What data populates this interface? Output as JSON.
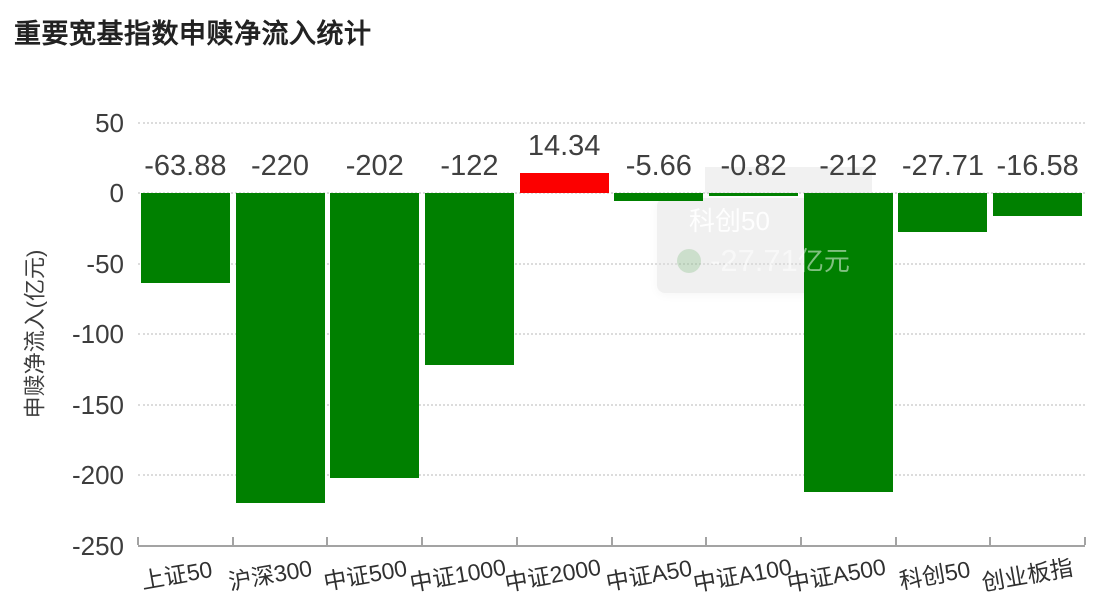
{
  "title": "重要宽基指数申赎净流入统计",
  "chart_data": {
    "type": "bar",
    "title": "重要宽基指数申赎净流入统计",
    "xlabel": "",
    "ylabel": "申赎净流入(亿元)",
    "ylim": [
      -250,
      50
    ],
    "yticks": [
      50,
      0,
      -50,
      -100,
      -150,
      -200,
      -250
    ],
    "grid": true,
    "legend": false,
    "categories": [
      "上证50",
      "沪深300",
      "中证500",
      "中证1000",
      "中证2000",
      "中证A50",
      "中证A100",
      "中证A500",
      "科创50",
      "创业板指"
    ],
    "values": [
      -63.88,
      -220,
      -202,
      -122,
      14.34,
      -5.66,
      -0.82,
      -212,
      -27.71,
      -16.58
    ],
    "value_labels": [
      "-63.88",
      "-220",
      "-202",
      "-122",
      "14.34",
      "-5.66",
      "-0.82",
      "-212",
      "-27.71",
      "-16.58"
    ],
    "colors": {
      "negative_bar": "#008000",
      "positive_bar": "#fc0000",
      "label": "#404040",
      "gridline": "#dcdcdc",
      "axis": "#a3a3a3"
    }
  },
  "tooltip": {
    "series_name": "科创50",
    "value": "-27.71",
    "unit": "亿元"
  }
}
